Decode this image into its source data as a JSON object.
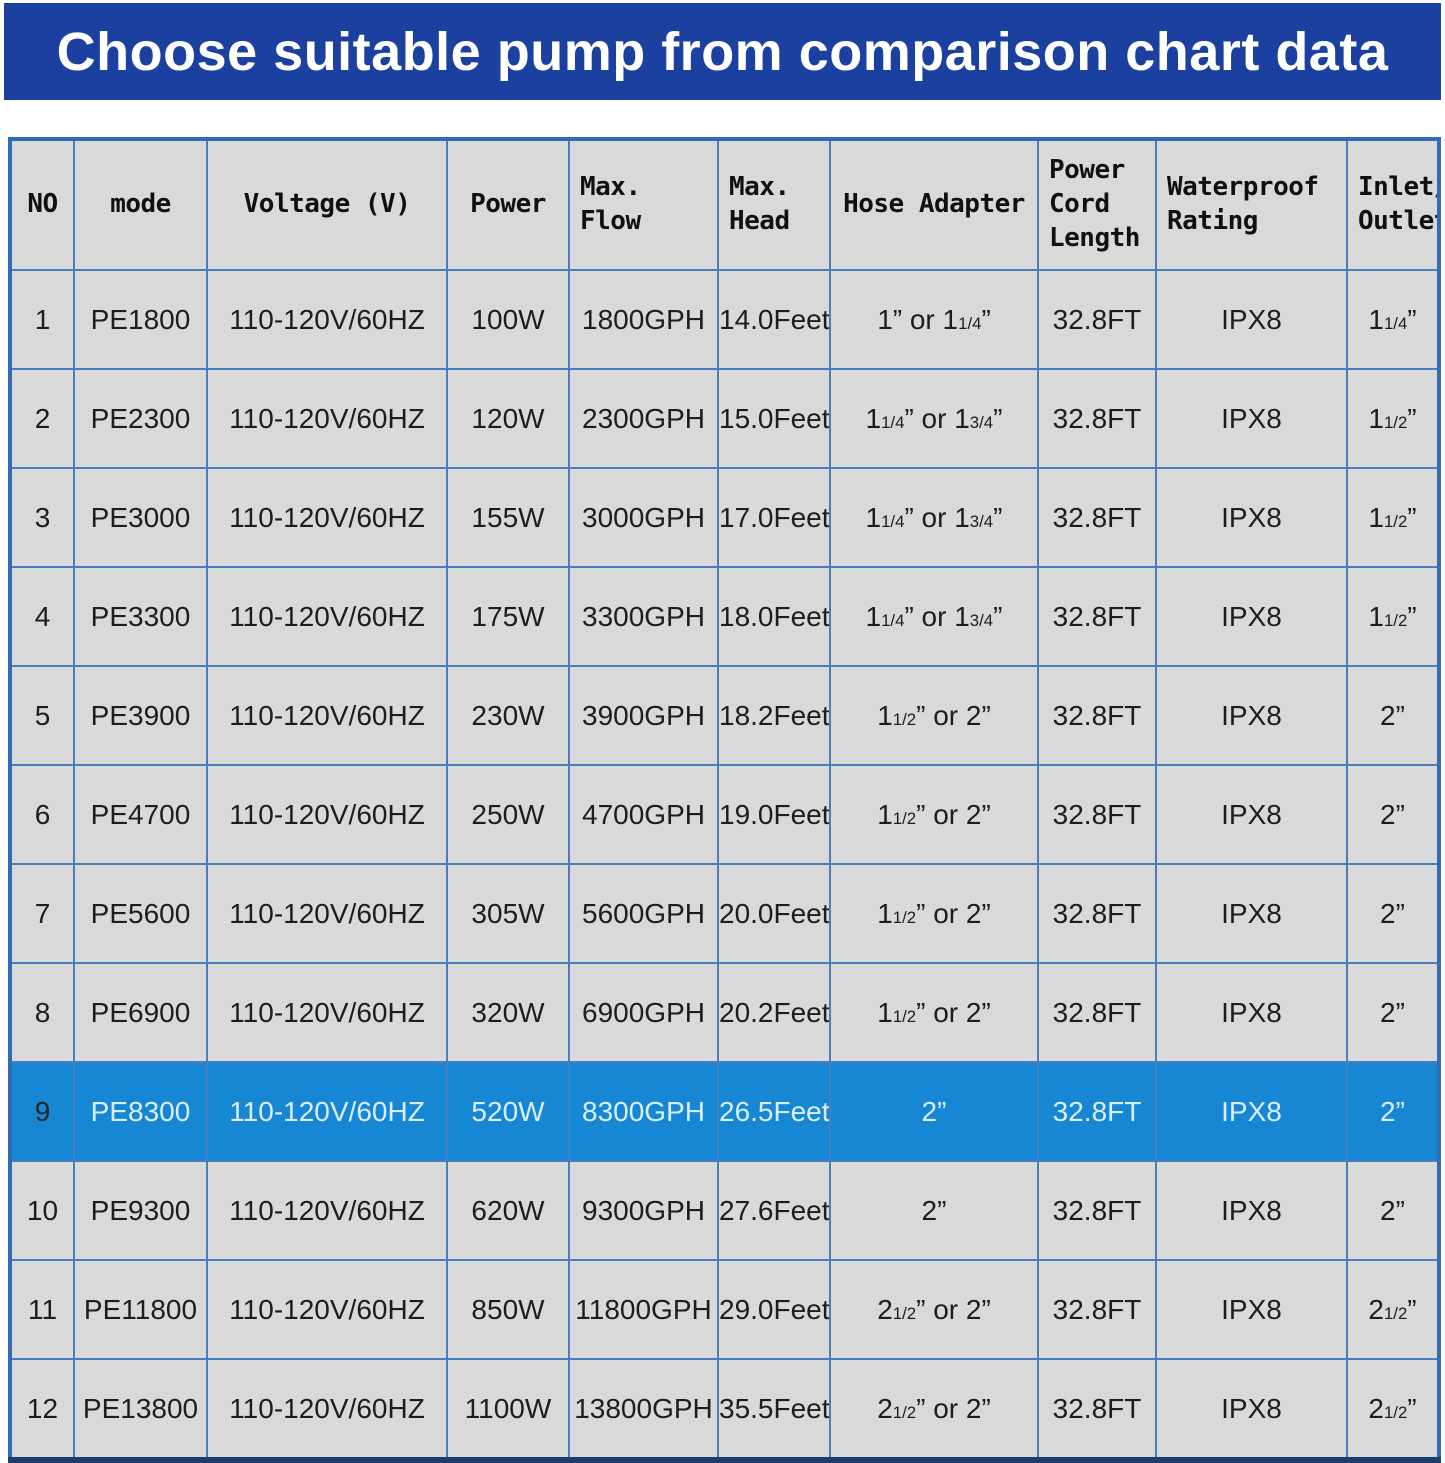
{
  "banner": {
    "title": "Choose suitable pump from comparison chart data",
    "bg_color": "#1c409f",
    "text_color": "#ffffff"
  },
  "colors": {
    "table_cell_bg": "#d9d9d9",
    "grid_line": "#4a7cc0",
    "outer_border": "#2e6db4",
    "outer_border_bottom": "#1e3c6e",
    "highlight_row_bg": "#1787d3",
    "highlight_row_text": "#d9eeff",
    "body_text": "#1d1d1d"
  },
  "table": {
    "header_keys": [
      "no",
      "mode",
      "voltage",
      "power",
      "max-flow",
      "max-head",
      "hose-adapter",
      "power-cord-length",
      "waterproof-rating",
      "inlet-outlet"
    ],
    "headers": [
      "NO",
      "mode",
      "Voltage (V)",
      "Power",
      "Max.\nFlow",
      "Max.\nHead",
      "Hose Adapter",
      "Power\nCord\nLength",
      "Waterproof\nRating",
      "Inlet/\nOutlet"
    ],
    "highlighted_row_index": 8,
    "rows": [
      [
        "1",
        "PE1800",
        "110-120V/60HZ",
        "100W",
        "1800GPH",
        "14.0Feet",
        "1” or 1[1/4]”",
        "32.8FT",
        "IPX8",
        "1[1/4]”"
      ],
      [
        "2",
        "PE2300",
        "110-120V/60HZ",
        "120W",
        "2300GPH",
        "15.0Feet",
        "1[1/4]” or 1[3/4]”",
        "32.8FT",
        "IPX8",
        "1[1/2]”"
      ],
      [
        "3",
        "PE3000",
        "110-120V/60HZ",
        "155W",
        "3000GPH",
        "17.0Feet",
        "1[1/4]” or 1[3/4]”",
        "32.8FT",
        "IPX8",
        "1[1/2]”"
      ],
      [
        "4",
        "PE3300",
        "110-120V/60HZ",
        "175W",
        "3300GPH",
        "18.0Feet",
        "1[1/4]” or 1[3/4]”",
        "32.8FT",
        "IPX8",
        "1[1/2]”"
      ],
      [
        "5",
        "PE3900",
        "110-120V/60HZ",
        "230W",
        "3900GPH",
        "18.2Feet",
        "1[1/2]” or 2”",
        "32.8FT",
        "IPX8",
        "2”"
      ],
      [
        "6",
        "PE4700",
        "110-120V/60HZ",
        "250W",
        "4700GPH",
        "19.0Feet",
        "1[1/2]” or 2”",
        "32.8FT",
        "IPX8",
        "2”"
      ],
      [
        "7",
        "PE5600",
        "110-120V/60HZ",
        "305W",
        "5600GPH",
        "20.0Feet",
        "1[1/2]” or 2”",
        "32.8FT",
        "IPX8",
        "2”"
      ],
      [
        "8",
        "PE6900",
        "110-120V/60HZ",
        "320W",
        "6900GPH",
        "20.2Feet",
        "1[1/2]” or 2”",
        "32.8FT",
        "IPX8",
        "2”"
      ],
      [
        "9",
        "PE8300",
        "110-120V/60HZ",
        "520W",
        "8300GPH",
        "26.5Feet",
        "2”",
        "32.8FT",
        "IPX8",
        "2”"
      ],
      [
        "10",
        "PE9300",
        "110-120V/60HZ",
        "620W",
        "9300GPH",
        "27.6Feet",
        "2”",
        "32.8FT",
        "IPX8",
        "2”"
      ],
      [
        "11",
        "PE11800",
        "110-120V/60HZ",
        "850W",
        "11800GPH",
        "29.0Feet",
        "2[1/2]” or 2”",
        "32.8FT",
        "IPX8",
        "2[1/2]”"
      ],
      [
        "12",
        "PE13800",
        "110-120V/60HZ",
        "1100W",
        "13800GPH",
        "35.5Feet",
        "2[1/2]” or 2”",
        "32.8FT",
        "IPX8",
        "2[1/2]”"
      ]
    ]
  },
  "chart_data": {
    "type": "table",
    "title": "Choose suitable pump from comparison chart data",
    "columns": [
      "NO",
      "mode",
      "Voltage (V)",
      "Power",
      "Max. Flow",
      "Max. Head",
      "Hose Adapter",
      "Power Cord Length",
      "Waterproof Rating",
      "Inlet/Outlet"
    ],
    "rows": [
      [
        "1",
        "PE1800",
        "110-120V/60HZ",
        "100W",
        "1800GPH",
        "14.0Feet",
        "1” or 1¼”",
        "32.8FT",
        "IPX8",
        "1¼”"
      ],
      [
        "2",
        "PE2300",
        "110-120V/60HZ",
        "120W",
        "2300GPH",
        "15.0Feet",
        "1¼” or 1¾”",
        "32.8FT",
        "IPX8",
        "1½”"
      ],
      [
        "3",
        "PE3000",
        "110-120V/60HZ",
        "155W",
        "3000GPH",
        "17.0Feet",
        "1¼” or 1¾”",
        "32.8FT",
        "IPX8",
        "1½”"
      ],
      [
        "4",
        "PE3300",
        "110-120V/60HZ",
        "175W",
        "3300GPH",
        "18.0Feet",
        "1¼” or 1¾”",
        "32.8FT",
        "IPX8",
        "1½”"
      ],
      [
        "5",
        "PE3900",
        "110-120V/60HZ",
        "230W",
        "3900GPH",
        "18.2Feet",
        "1½” or 2”",
        "32.8FT",
        "IPX8",
        "2”"
      ],
      [
        "6",
        "PE4700",
        "110-120V/60HZ",
        "250W",
        "4700GPH",
        "19.0Feet",
        "1½” or 2”",
        "32.8FT",
        "IPX8",
        "2”"
      ],
      [
        "7",
        "PE5600",
        "110-120V/60HZ",
        "305W",
        "5600GPH",
        "20.0Feet",
        "1½” or 2”",
        "32.8FT",
        "IPX8",
        "2”"
      ],
      [
        "8",
        "PE6900",
        "110-120V/60HZ",
        "320W",
        "6900GPH",
        "20.2Feet",
        "1½” or 2”",
        "32.8FT",
        "IPX8",
        "2”"
      ],
      [
        "9",
        "PE8300",
        "110-120V/60HZ",
        "520W",
        "8300GPH",
        "26.5Feet",
        "2”",
        "32.8FT",
        "IPX8",
        "2”"
      ],
      [
        "10",
        "PE9300",
        "110-120V/60HZ",
        "620W",
        "9300GPH",
        "27.6Feet",
        "2”",
        "32.8FT",
        "IPX8",
        "2”"
      ],
      [
        "11",
        "PE11800",
        "110-120V/60HZ",
        "850W",
        "11800GPH",
        "29.0Feet",
        "2½” or 2”",
        "32.8FT",
        "IPX8",
        "2½”"
      ],
      [
        "12",
        "PE13800",
        "110-120V/60HZ",
        "1100W",
        "13800GPH",
        "35.5Feet",
        "2½” or 2”",
        "32.8FT",
        "IPX8",
        "2½”"
      ]
    ],
    "highlighted_row": "PE8300",
    "layout_hints": {
      "grid": true,
      "highlight_color": "#1787d3",
      "header_position": "top"
    }
  }
}
